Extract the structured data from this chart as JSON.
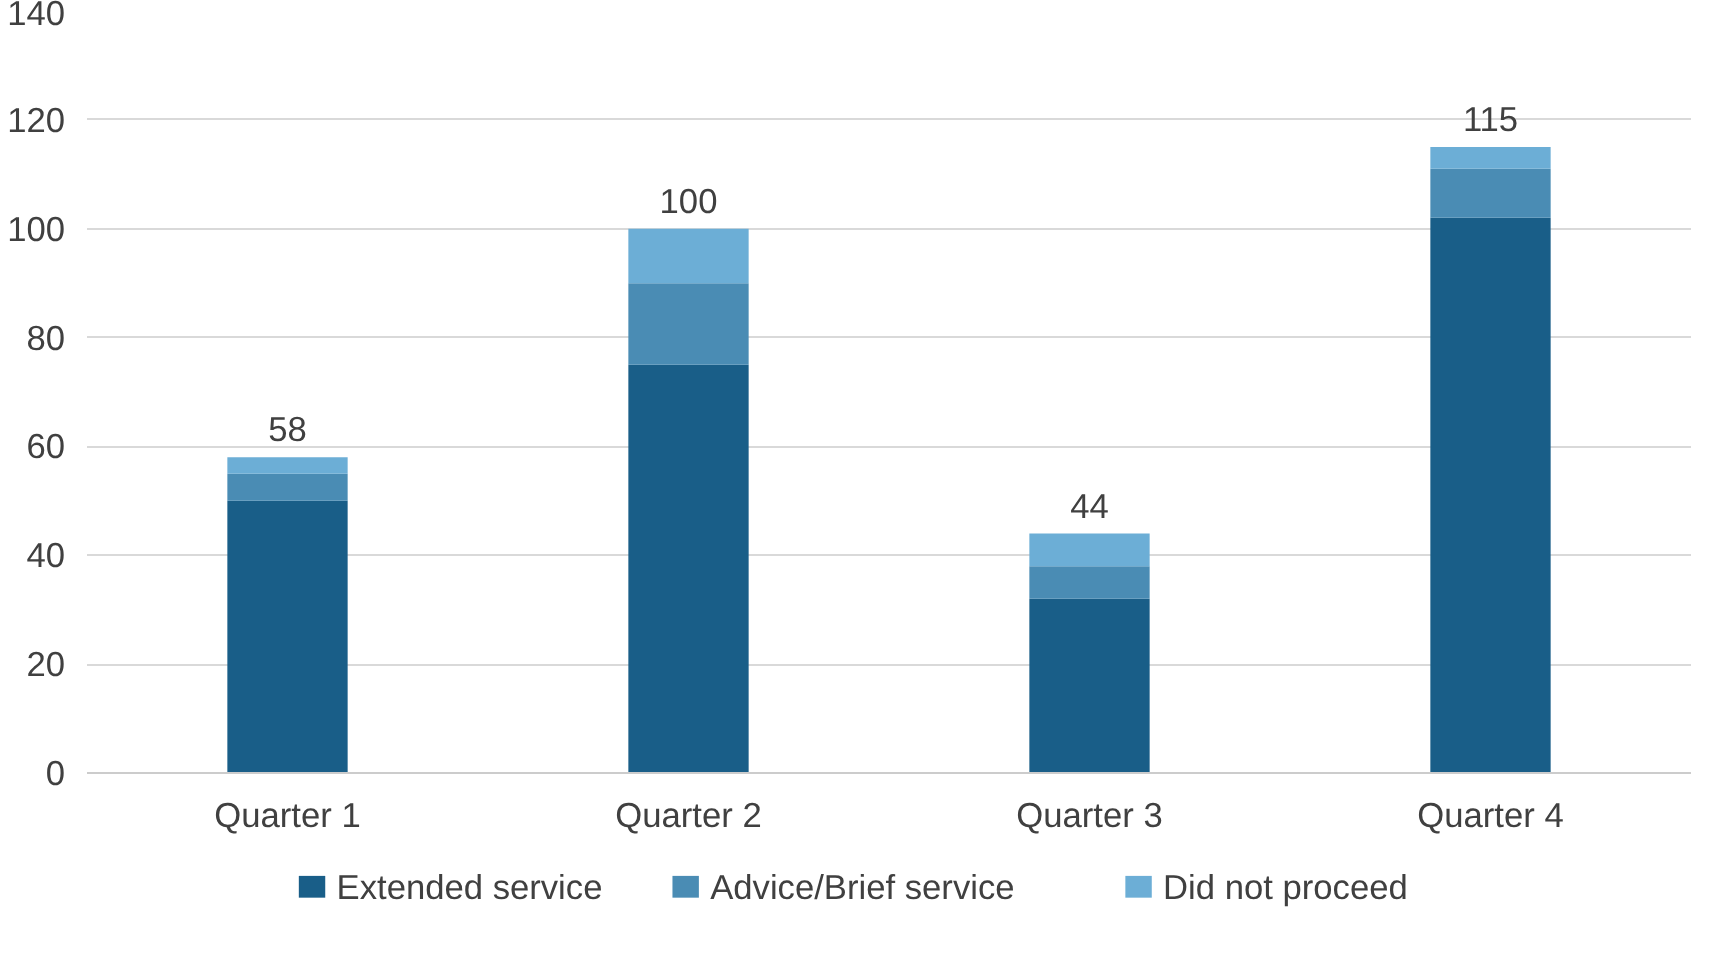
{
  "chart_data": {
    "type": "bar",
    "stacked": true,
    "categories": [
      "Quarter 1",
      "Quarter 2",
      "Quarter 3",
      "Quarter 4"
    ],
    "series": [
      {
        "name": "Extended service",
        "color": "#195e88",
        "values": [
          50,
          75,
          32,
          102
        ]
      },
      {
        "name": "Advice/Brief service",
        "color": "#4a8cb4",
        "values": [
          5,
          15,
          6,
          9
        ]
      },
      {
        "name": "Did not proceed",
        "color": "#6caed6",
        "values": [
          3,
          10,
          6,
          4
        ]
      }
    ],
    "totals": [
      "58",
      "100",
      "44",
      "115"
    ],
    "ylim": [
      0,
      140
    ],
    "yticks": [
      0,
      20,
      40,
      60,
      80,
      100,
      120,
      140
    ],
    "grid": "y",
    "legend": "bottom"
  }
}
